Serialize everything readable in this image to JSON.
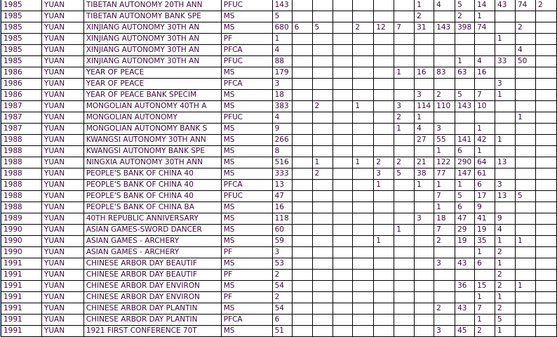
{
  "table": {
    "rows": [
      [
        "1985",
        "YUAN",
        "TIBETAN AUTONOMY 20TH ANN",
        "PFUC",
        "143",
        [
          "",
          "",
          "",
          "",
          "",
          "",
          "1",
          "4",
          "5",
          "14",
          "43",
          "74",
          "2"
        ]
      ],
      [
        "1985",
        "YUAN",
        "TIBETAN AUTONOMY BANK SPE",
        "MS",
        "5",
        [
          "",
          "",
          "",
          "",
          "",
          "",
          "2",
          "",
          "2",
          "1",
          "",
          "",
          ""
        ]
      ],
      [
        "1985",
        "YUAN",
        "XINJIANG AUTONOMY 30TH AN",
        "MS",
        "680",
        [
          "6",
          "5",
          "",
          "2",
          "12",
          "7",
          "31",
          "143",
          "398",
          "74",
          "",
          "2",
          ""
        ]
      ],
      [
        "1985",
        "YUAN",
        "XINJIANG AUTONOMY 30TH AN",
        "PF",
        "1",
        [
          "",
          "",
          "",
          "",
          "",
          "",
          "",
          "",
          "",
          "",
          "1",
          "",
          ""
        ]
      ],
      [
        "1985",
        "YUAN",
        "XINJIANG AUTONOMY 30TH AN",
        "PFCA",
        "4",
        [
          "",
          "",
          "",
          "",
          "",
          "",
          "",
          "",
          "",
          "",
          "",
          "4",
          ""
        ]
      ],
      [
        "1985",
        "YUAN",
        "XINJIANG AUTONOMY 30TH AN",
        "PFUC",
        "88",
        [
          "",
          "",
          "",
          "",
          "",
          "",
          "",
          "",
          "1",
          "4",
          "33",
          "50",
          ""
        ]
      ],
      [
        "1986",
        "YUAN",
        "YEAR OF PEACE",
        "MS",
        "179",
        [
          "",
          "",
          "",
          "",
          "",
          "1",
          "16",
          "83",
          "63",
          "16",
          "",
          "",
          ""
        ]
      ],
      [
        "1986",
        "YUAN",
        "YEAR OF PEACE",
        "PFCA",
        "3",
        [
          "",
          "",
          "",
          "",
          "",
          "",
          "",
          "",
          "",
          "",
          "3",
          "",
          ""
        ]
      ],
      [
        "1986",
        "YUAN",
        "YEAR OF PEACE BANK SPECIM",
        "MS",
        "18",
        [
          "",
          "",
          "",
          "",
          "",
          "",
          "3",
          "2",
          "5",
          "7",
          "1",
          "",
          ""
        ]
      ],
      [
        "1987",
        "YUAN",
        "MONGOLIAN AUTONOMY 40TH A",
        "MS",
        "383",
        [
          "",
          "2",
          "",
          "1",
          "",
          "3",
          "114",
          "110",
          "143",
          "10",
          "",
          "",
          ""
        ]
      ],
      [
        "1987",
        "YUAN",
        "MONGOLIAN AUTONOMY",
        "PFUC",
        "4",
        [
          "",
          "",
          "",
          "",
          "",
          "2",
          "1",
          "",
          "",
          "",
          "",
          "1",
          ""
        ]
      ],
      [
        "1987",
        "YUAN",
        "MONGOLIAN AUTONOMY BANK S",
        "MS",
        "9",
        [
          "",
          "",
          "",
          "",
          "",
          "1",
          "4",
          "3",
          "",
          "1",
          "",
          "",
          ""
        ]
      ],
      [
        "1988",
        "YUAN",
        "KWANGSI AUTONOMY 30TH ANN",
        "MS",
        "266",
        [
          "",
          "",
          "",
          "",
          "",
          "",
          "27",
          "55",
          "141",
          "42",
          "1",
          "",
          ""
        ]
      ],
      [
        "1988",
        "YUAN",
        "KWANGSI AUTONOMY BANK SPE",
        "MS",
        "8",
        [
          "",
          "",
          "",
          "",
          "",
          "",
          "",
          "1",
          "6",
          "1",
          "",
          "",
          ""
        ]
      ],
      [
        "1988",
        "YUAN",
        "NINGXIA AUTONOMY 30TH ANN",
        "MS",
        "516",
        [
          "",
          "1",
          "",
          "1",
          "2",
          "2",
          "21",
          "122",
          "290",
          "64",
          "13",
          "",
          ""
        ]
      ],
      [
        "1988",
        "YUAN",
        "PEOPLE'S BANK OF CHINA 40",
        "MS",
        "333",
        [
          "",
          "2",
          "",
          "",
          "3",
          "5",
          "38",
          "77",
          "147",
          "61",
          "",
          "",
          ""
        ]
      ],
      [
        "1988",
        "YUAN",
        "PEOPLE'S BANK OF CHINA 40",
        "PFCA",
        "13",
        [
          "",
          "",
          "",
          "",
          "1",
          "",
          "1",
          "1",
          "1",
          "6",
          "3",
          "",
          ""
        ]
      ],
      [
        "1988",
        "YUAN",
        "PEOPLE'S BANK OF CHINA 40",
        "PFUC",
        "47",
        [
          "",
          "",
          "",
          "",
          "",
          "",
          "",
          "7",
          "5",
          "17",
          "13",
          "5",
          ""
        ]
      ],
      [
        "1988",
        "YUAN",
        "PEOPLE'S BANK OF CHINA BA",
        "MS",
        "16",
        [
          "",
          "",
          "",
          "",
          "",
          "",
          "",
          "1",
          "6",
          "9",
          "",
          "",
          ""
        ]
      ],
      [
        "1989",
        "YUAN",
        "40TH REPUBLIC ANNIVERSARY",
        "MS",
        "118",
        [
          "",
          "",
          "",
          "",
          "",
          "",
          "3",
          "18",
          "47",
          "41",
          "9",
          "",
          ""
        ]
      ],
      [
        "1990",
        "YUAN",
        "ASIAN GAMES-SWORD DANCER",
        "MS",
        "60",
        [
          "",
          "",
          "",
          "",
          "",
          "1",
          "",
          "7",
          "29",
          "19",
          "4",
          "",
          ""
        ]
      ],
      [
        "1990",
        "YUAN",
        "ASIAN GAMES - ARCHERY",
        "MS",
        "59",
        [
          "",
          "",
          "",
          "",
          "1",
          "",
          "",
          "2",
          "19",
          "35",
          "1",
          "1",
          ""
        ]
      ],
      [
        "1990",
        "YUAN",
        "ASIAN GAMES - ARCHERY",
        "PF",
        "3",
        [
          "",
          "",
          "",
          "",
          "",
          "",
          "",
          "",
          "",
          "1",
          "2",
          "",
          ""
        ]
      ],
      [
        "1991",
        "YUAN",
        "CHINESE ARBOR DAY BEAUTIF",
        "MS",
        "53",
        [
          "",
          "",
          "",
          "",
          "",
          "",
          "",
          "3",
          "43",
          "6",
          "1",
          "",
          ""
        ]
      ],
      [
        "1991",
        "YUAN",
        "CHINESE ARBOR DAY BEAUTIF",
        "PF",
        "2",
        [
          "",
          "",
          "",
          "",
          "",
          "",
          "",
          "",
          "",
          "",
          "2",
          "",
          ""
        ]
      ],
      [
        "1991",
        "YUAN",
        "CHINESE ARBOR DAY ENVIRON",
        "MS",
        "54",
        [
          "",
          "",
          "",
          "",
          "",
          "",
          "",
          "",
          "36",
          "15",
          "2",
          "1",
          ""
        ]
      ],
      [
        "1991",
        "YUAN",
        "CHINESE ARBOR DAY ENVIRON",
        "PF",
        "2",
        [
          "",
          "",
          "",
          "",
          "",
          "",
          "",
          "",
          "",
          "1",
          "1",
          "",
          ""
        ]
      ],
      [
        "1991",
        "YUAN",
        "CHINESE ARBOR DAY PLANTIN",
        "MS",
        "54",
        [
          "",
          "",
          "",
          "",
          "",
          "",
          "",
          "2",
          "43",
          "7",
          "2",
          "",
          ""
        ]
      ],
      [
        "1991",
        "YUAN",
        "CHINESE ARBOR DAY PLANTIN",
        "PFCA",
        "6",
        [
          "",
          "",
          "",
          "",
          "",
          "",
          "",
          "",
          "",
          "1",
          "5",
          "",
          ""
        ]
      ],
      [
        "1991",
        "YUAN",
        "1921 FIRST CONFERENCE 70T",
        "MS",
        "51",
        [
          "",
          "",
          "",
          "",
          "",
          "",
          "",
          "3",
          "45",
          "2",
          "1",
          "",
          ""
        ]
      ]
    ]
  },
  "colors": {
    "text": "#3a0a3a",
    "border": "#000000"
  }
}
